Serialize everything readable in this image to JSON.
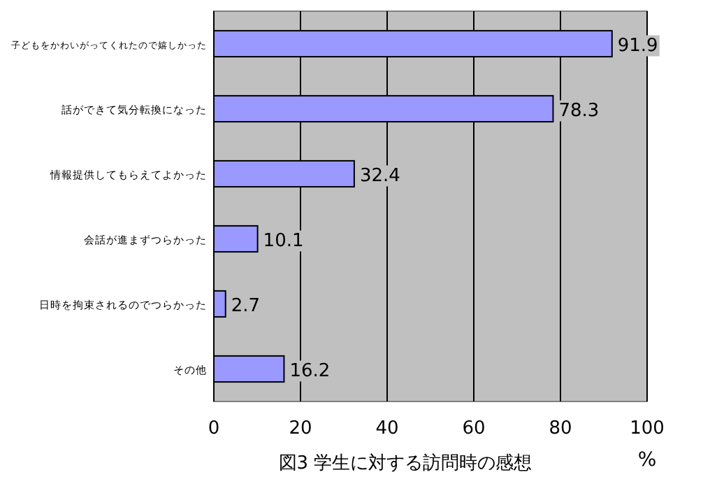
{
  "chart_data": {
    "type": "bar",
    "orientation": "horizontal",
    "title": "図3 学生に対する訪問時の感想",
    "xlabel": "%",
    "categories": [
      "子どもをかわいがってくれたので嬉しかった",
      "話ができて気分転換になった",
      "情報提供してもらえてよかった",
      "会話が進まずつらかった",
      "日時を拘束されるのでつらかった",
      "その他"
    ],
    "values": [
      91.9,
      78.3,
      32.4,
      10.1,
      2.7,
      16.2
    ],
    "color": "#9999ff",
    "xlim": [
      0,
      100
    ],
    "xticks": [
      0,
      20,
      40,
      60,
      80,
      100
    ],
    "grid": "x",
    "data_labels": true
  }
}
